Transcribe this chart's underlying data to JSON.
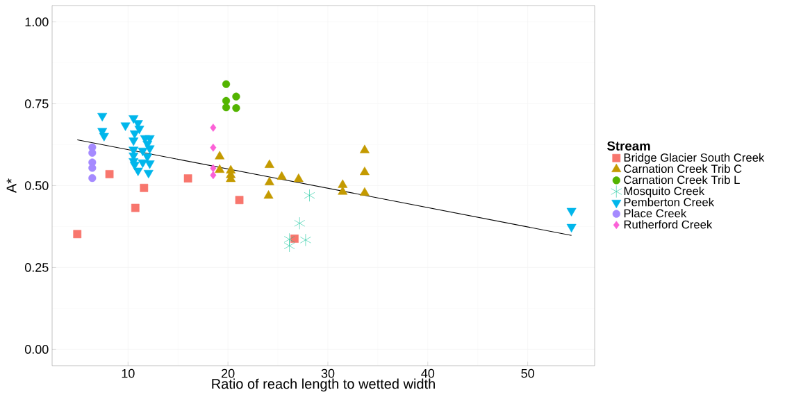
{
  "chart_data": {
    "type": "scatter",
    "xlabel": "Ratio of reach length to wetted width",
    "ylabel": "A*",
    "legend_title": "Stream",
    "xlim": [
      2.4,
      56.7
    ],
    "ylim": [
      -0.05,
      1.05
    ],
    "xticks": [
      10,
      20,
      30,
      40,
      50
    ],
    "yticks": [
      {
        "value": 0,
        "label": "0.00"
      },
      {
        "value": 0.25,
        "label": "0.25"
      },
      {
        "value": 0.5,
        "label": "0.50"
      },
      {
        "value": 0.75,
        "label": "0.75"
      },
      {
        "value": 1,
        "label": "1.00"
      }
    ],
    "grid": true,
    "legend": "right",
    "series": [
      {
        "name": "Bridge Glacier South Creek",
        "color": "#f8766d",
        "marker": "square",
        "x": [
          4.92,
          8.14,
          10.73,
          11.6,
          16.0,
          21.14,
          26.66
        ],
        "values": [
          0.352,
          0.535,
          0.432,
          0.493,
          0.522,
          0.456,
          0.338
        ]
      },
      {
        "name": "Carnation Creek Trib C",
        "color": "#c49a00",
        "marker": "triangle",
        "x": [
          19.17,
          19.17,
          20.28,
          20.28,
          20.28,
          24.15,
          24.15,
          24.06,
          25.38,
          27.07,
          31.48,
          31.48,
          33.68,
          33.68,
          33.68
        ],
        "values": [
          0.589,
          0.548,
          0.546,
          0.532,
          0.52,
          0.563,
          0.51,
          0.469,
          0.527,
          0.52,
          0.502,
          0.481,
          0.608,
          0.541,
          0.478
        ]
      },
      {
        "name": "Carnation Creek Trib L",
        "color": "#53b400",
        "marker": "circle",
        "x": [
          19.82,
          19.82,
          19.82,
          20.82,
          20.82
        ],
        "values": [
          0.81,
          0.759,
          0.739,
          0.772,
          0.737
        ]
      },
      {
        "name": "Mosquito Creek",
        "color": "#00c094",
        "marker": "cross",
        "x": [
          28.16,
          27.17,
          26.15,
          26.15,
          27.77
        ],
        "values": [
          0.47,
          0.385,
          0.336,
          0.316,
          0.334
        ]
      },
      {
        "name": "Pemberton Creek",
        "color": "#00b6eb",
        "marker": "triangle-down",
        "x": [
          7.42,
          7.42,
          7.6,
          9.74,
          10.55,
          11.0,
          11.13,
          10.66,
          10.55,
          11.7,
          12.17,
          11.94,
          12.17,
          10.55,
          11.47,
          10.55,
          11.94,
          10.55,
          11.47,
          10.66,
          12.17,
          11.0,
          12.05,
          54.38,
          54.38
        ],
        "values": [
          0.713,
          0.667,
          0.652,
          0.684,
          0.706,
          0.691,
          0.674,
          0.66,
          0.638,
          0.645,
          0.645,
          0.628,
          0.614,
          0.61,
          0.607,
          0.592,
          0.589,
          0.575,
          0.571,
          0.564,
          0.568,
          0.546,
          0.539,
          0.423,
          0.374
        ]
      },
      {
        "name": "Place Creek",
        "color": "#a58aff",
        "marker": "circle",
        "x": [
          6.42,
          6.42,
          6.42,
          6.42,
          6.42
        ],
        "values": [
          0.617,
          0.6,
          0.571,
          0.554,
          0.523
        ]
      },
      {
        "name": "Rutherford Creek",
        "color": "#fb61d7",
        "marker": "diamond",
        "x": [
          18.52,
          18.52,
          18.52,
          18.52
        ],
        "values": [
          0.677,
          0.616,
          0.553,
          0.532
        ]
      },
      {
        "type": "line",
        "color": "#000000",
        "marker": "none",
        "x": [
          4.92,
          54.38
        ],
        "values": [
          0.64,
          0.348
        ]
      }
    ]
  }
}
